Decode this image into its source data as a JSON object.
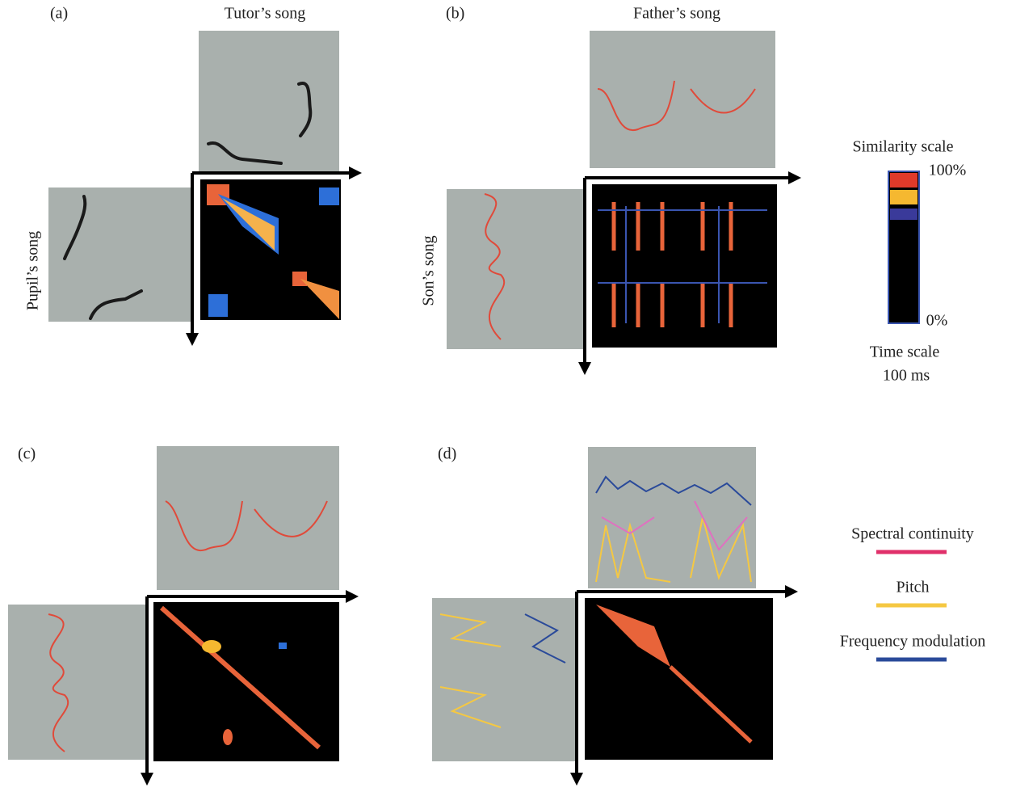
{
  "panels": [
    {
      "label": "(a)",
      "top_title": "Tutor’s song",
      "side_title": "Pupil’s song"
    },
    {
      "label": "(b)",
      "top_title": "Father’s song",
      "side_title": "Son’s song"
    },
    {
      "label": "(c)"
    },
    {
      "label": "(d)"
    }
  ],
  "scale": {
    "title": "Similarity scale",
    "max_label": "100%",
    "min_label": "0%",
    "time_title": "Time scale",
    "time_value": "100 ms"
  },
  "legend": [
    {
      "name": "Spectral continuity",
      "color": "#e0306a"
    },
    {
      "name": "Pitch",
      "color": "#f5c842"
    },
    {
      "name": "Frequency modulation",
      "color": "#2a4a9a"
    }
  ]
}
